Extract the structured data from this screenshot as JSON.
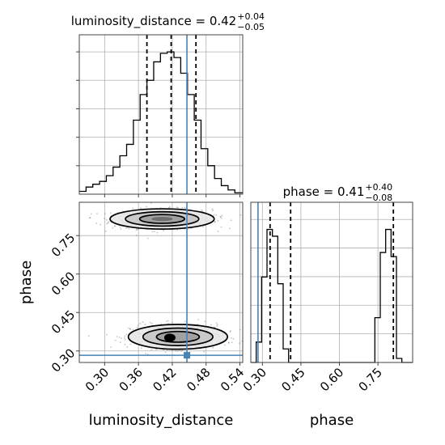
{
  "chart_data": [
    {
      "type": "histogram",
      "panel": "luminosity_distance marginal",
      "title": {
        "param": "luminosity_distance",
        "median": "0.42",
        "upper": "+0.04",
        "lower": "−0.05"
      },
      "bin_edges": [
        0.255,
        0.267,
        0.279,
        0.291,
        0.303,
        0.315,
        0.327,
        0.339,
        0.351,
        0.363,
        0.375,
        0.387,
        0.399,
        0.411,
        0.423,
        0.435,
        0.447,
        0.459,
        0.471,
        0.483,
        0.495,
        0.507,
        0.519,
        0.531,
        0.545
      ],
      "counts": [
        0.02,
        0.05,
        0.07,
        0.09,
        0.13,
        0.19,
        0.27,
        0.35,
        0.52,
        0.7,
        0.8,
        0.93,
        0.99,
        1.0,
        0.96,
        0.85,
        0.7,
        0.52,
        0.32,
        0.2,
        0.11,
        0.06,
        0.03,
        0.01
      ],
      "quantiles": [
        0.375,
        0.418,
        0.462
      ],
      "truth": 0.446,
      "xlim": [
        0.255,
        0.545
      ],
      "xticks": [
        0.3,
        0.36,
        0.42,
        0.48,
        0.54
      ],
      "grid": true
    },
    {
      "type": "scatter",
      "panel": "phase vs luminosity_distance",
      "x_param": "luminosity_distance",
      "y_param": "phase",
      "xlabel": "luminosity_distance",
      "ylabel": "phase",
      "xlim": [
        0.255,
        0.545
      ],
      "ylim": [
        0.255,
        0.88
      ],
      "xtick_labels": [
        "0.30",
        "0.36",
        "0.42",
        "0.48",
        "0.54"
      ],
      "xticks": [
        0.3,
        0.36,
        0.42,
        0.48,
        0.54
      ],
      "ytick_labels": [
        "0.30",
        "0.45",
        "0.60",
        "0.75"
      ],
      "yticks": [
        0.3,
        0.45,
        0.6,
        0.75
      ],
      "modes": [
        {
          "x_center": 0.402,
          "y_center": 0.815,
          "x_std": 0.042,
          "y_std": 0.018,
          "weight": 0.55
        },
        {
          "x_center": 0.43,
          "y_center": 0.355,
          "x_std": 0.04,
          "y_std": 0.022,
          "weight": 0.45
        }
      ],
      "contour_levels": [
        0.39,
        0.86,
        1.49
      ],
      "truth": {
        "x": 0.446,
        "y": 0.283
      },
      "grid": true
    },
    {
      "type": "histogram",
      "panel": "phase marginal",
      "title": {
        "param": "phase",
        "median": "0.41",
        "upper": "+0.40",
        "lower": "−0.08"
      },
      "xlabel": "phase",
      "bin_edges": [
        0.255,
        0.276,
        0.297,
        0.318,
        0.339,
        0.36,
        0.381,
        0.402,
        0.423,
        0.444,
        0.465,
        0.486,
        0.507,
        0.528,
        0.549,
        0.57,
        0.591,
        0.612,
        0.633,
        0.654,
        0.675,
        0.696,
        0.717,
        0.738,
        0.759,
        0.78,
        0.801,
        0.822,
        0.843,
        0.864,
        0.885
      ],
      "counts": [
        0.0,
        0.15,
        0.63,
        0.98,
        0.93,
        0.58,
        0.1,
        0.0,
        0.0,
        0.0,
        0.0,
        0.0,
        0.0,
        0.0,
        0.0,
        0.0,
        0.0,
        0.0,
        0.0,
        0.0,
        0.0,
        0.0,
        0.0,
        0.33,
        0.81,
        0.98,
        0.78,
        0.03,
        0.0,
        0.0
      ],
      "quantiles": [
        0.33,
        0.41,
        0.81
      ],
      "truth": 0.283,
      "xlim": [
        0.255,
        0.885
      ],
      "xtick_labels": [
        "0.30",
        "0.45",
        "0.60",
        "0.75"
      ],
      "xticks": [
        0.3,
        0.45,
        0.6,
        0.75
      ],
      "grid": true
    }
  ],
  "colors": {
    "truth": "#4682b4",
    "hist": "#000000",
    "grid": "#b0b0b0",
    "scatter": "#555555"
  }
}
